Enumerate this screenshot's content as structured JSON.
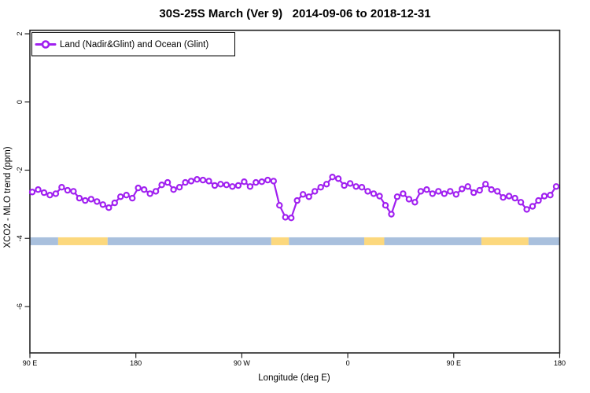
{
  "title": "30S-25S March (Ver 9)   2014-09-06 to 2018-12-31",
  "legend": {
    "label": "Land (Nadir&Glint) and Ocean (Glint)"
  },
  "colors": {
    "series": "#a020f0",
    "land": "#fcd87d",
    "ocean": "#a9c0dd",
    "axis": "#262626",
    "text": "#000000",
    "background": "#ffffff"
  },
  "chart_data": {
    "type": "line",
    "title": "30S-25S March (Ver 9)   2014-09-06 to 2018-12-31",
    "xlabel": "Longitude (deg E)",
    "ylabel": "XCO2 - MLO trend (ppm)",
    "legend_position": "top-left",
    "grid": false,
    "x_axis": {
      "note": "longitude axis wraps: 90E to 180, then 90W, 0, 90E, 180",
      "range_deg_unwrapped": [
        90,
        540
      ],
      "ticks": [
        {
          "deg": 90,
          "label": "90 E"
        },
        {
          "deg": 180,
          "label": "180"
        },
        {
          "deg": 270,
          "label": "90 W"
        },
        {
          "deg": 360,
          "label": "0"
        },
        {
          "deg": 450,
          "label": "90 E"
        },
        {
          "deg": 540,
          "label": "180"
        }
      ]
    },
    "y_axis": {
      "range": [
        -7.4,
        2.1
      ],
      "ticks": [
        {
          "v": 2,
          "label": "2"
        },
        {
          "v": 0,
          "label": "0"
        },
        {
          "v": -2,
          "label": "-2"
        },
        {
          "v": -4,
          "label": "-4"
        },
        {
          "v": -6,
          "label": "-6"
        }
      ]
    },
    "series": [
      {
        "name": "Land (Nadir&Glint) and Ocean (Glint)",
        "color": "#a020f0",
        "marker": "open-circle",
        "x_deg": [
          92,
          97,
          102,
          107,
          112,
          117,
          122,
          127,
          132,
          137,
          142,
          147,
          152,
          157,
          162,
          167,
          172,
          177,
          182,
          187,
          192,
          197,
          202,
          207,
          212,
          217,
          222,
          227,
          232,
          237,
          242,
          247,
          252,
          257,
          262,
          267,
          272,
          277,
          282,
          287,
          292,
          297,
          302,
          307,
          312,
          317,
          322,
          327,
          332,
          337,
          342,
          347,
          352,
          357,
          362,
          367,
          372,
          377,
          382,
          387,
          392,
          397,
          402,
          407,
          412,
          417,
          422,
          427,
          432,
          437,
          442,
          447,
          452,
          457,
          462,
          467,
          472,
          477,
          482,
          487,
          492,
          497,
          502,
          507,
          512,
          517,
          522,
          527,
          532,
          537
        ],
        "y_ppm": [
          -2.64,
          -2.57,
          -2.66,
          -2.73,
          -2.69,
          -2.5,
          -2.59,
          -2.62,
          -2.82,
          -2.89,
          -2.85,
          -2.92,
          -3.01,
          -3.1,
          -2.96,
          -2.78,
          -2.73,
          -2.82,
          -2.52,
          -2.57,
          -2.69,
          -2.62,
          -2.43,
          -2.36,
          -2.57,
          -2.5,
          -2.36,
          -2.32,
          -2.27,
          -2.29,
          -2.32,
          -2.45,
          -2.41,
          -2.43,
          -2.48,
          -2.45,
          -2.34,
          -2.48,
          -2.36,
          -2.34,
          -2.29,
          -2.32,
          -3.03,
          -3.38,
          -3.4,
          -2.89,
          -2.71,
          -2.78,
          -2.62,
          -2.5,
          -2.41,
          -2.2,
          -2.25,
          -2.45,
          -2.39,
          -2.48,
          -2.5,
          -2.62,
          -2.69,
          -2.76,
          -3.03,
          -3.29,
          -2.78,
          -2.69,
          -2.85,
          -2.94,
          -2.62,
          -2.57,
          -2.69,
          -2.62,
          -2.69,
          -2.62,
          -2.71,
          -2.55,
          -2.48,
          -2.66,
          -2.59,
          -2.41,
          -2.57,
          -2.62,
          -2.8,
          -2.76,
          -2.82,
          -2.94,
          -3.15,
          -3.06,
          -2.89,
          -2.76,
          -2.73,
          -2.48
        ]
      }
    ],
    "surface_strip": {
      "description": "land/ocean surface-type indicator bar",
      "y_top_ppm": -3.97,
      "y_bottom_ppm": -4.2,
      "segments": [
        {
          "type": "ocean",
          "from_deg": 90,
          "to_deg": 114
        },
        {
          "type": "land",
          "from_deg": 114,
          "to_deg": 156
        },
        {
          "type": "ocean",
          "from_deg": 156,
          "to_deg": 295
        },
        {
          "type": "land",
          "from_deg": 295,
          "to_deg": 310
        },
        {
          "type": "ocean",
          "from_deg": 310,
          "to_deg": 374
        },
        {
          "type": "land",
          "from_deg": 374,
          "to_deg": 391
        },
        {
          "type": "ocean",
          "from_deg": 391,
          "to_deg": 473.5
        },
        {
          "type": "land",
          "from_deg": 473.5,
          "to_deg": 513.5
        },
        {
          "type": "ocean",
          "from_deg": 513.5,
          "to_deg": 540
        }
      ]
    }
  }
}
